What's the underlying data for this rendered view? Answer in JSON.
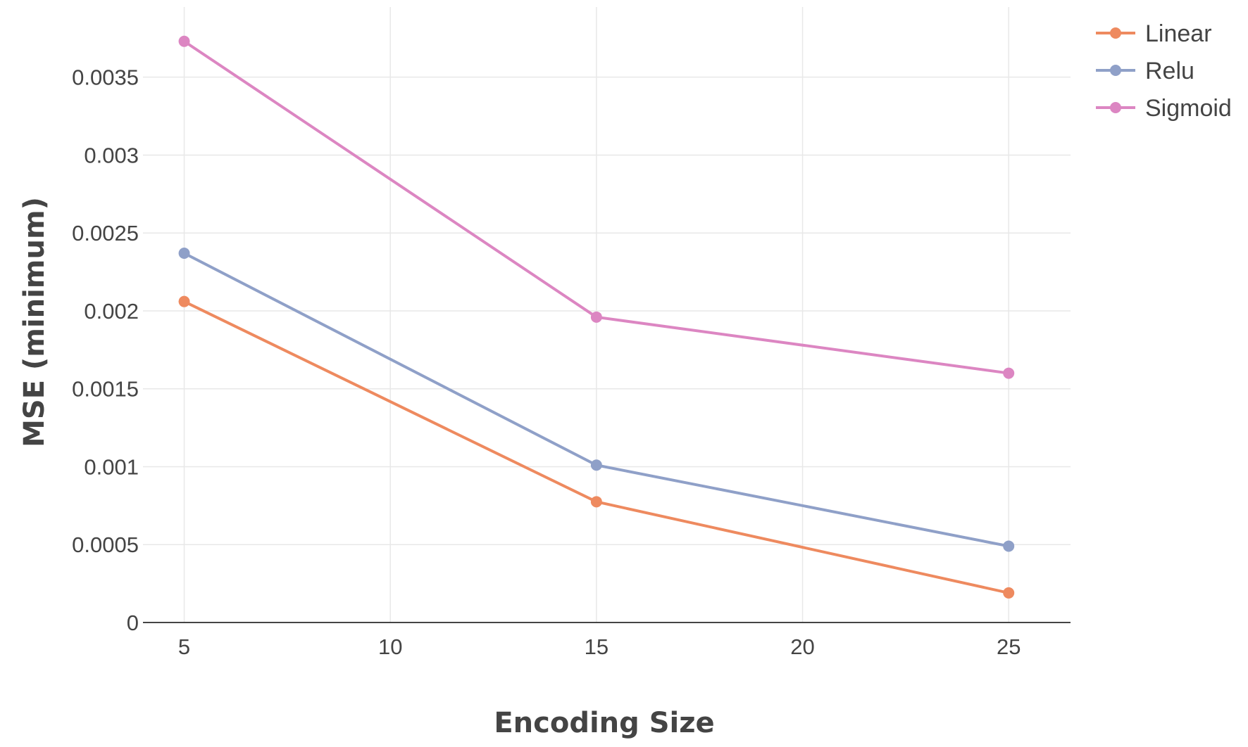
{
  "chart_data": {
    "type": "line",
    "title": "",
    "xlabel": "Encoding Size",
    "ylabel": "MSE (minimum)",
    "x": [
      5,
      15,
      25
    ],
    "xlim": [
      4,
      26.5
    ],
    "ylim": [
      0,
      0.00395
    ],
    "x_ticks": [
      5,
      10,
      15,
      20,
      25
    ],
    "x_tick_labels": [
      "5",
      "10",
      "15",
      "20",
      "25"
    ],
    "y_ticks": [
      0,
      0.0005,
      0.001,
      0.0015,
      0.002,
      0.0025,
      0.003,
      0.0035
    ],
    "y_tick_labels": [
      "0",
      "0.0005",
      "0.001",
      "0.0015",
      "0.002",
      "0.0025",
      "0.003",
      "0.0035"
    ],
    "grid": true,
    "legend_position": "top-right",
    "series": [
      {
        "name": "Linear",
        "color": "#ee8a5f",
        "values": [
          0.00206,
          0.000775,
          0.00019
        ]
      },
      {
        "name": "Relu",
        "color": "#8fa0c8",
        "values": [
          0.00237,
          0.00101,
          0.00049
        ]
      },
      {
        "name": "Sigmoid",
        "color": "#dc86c2",
        "values": [
          0.00373,
          0.00196,
          0.0016
        ]
      }
    ]
  }
}
